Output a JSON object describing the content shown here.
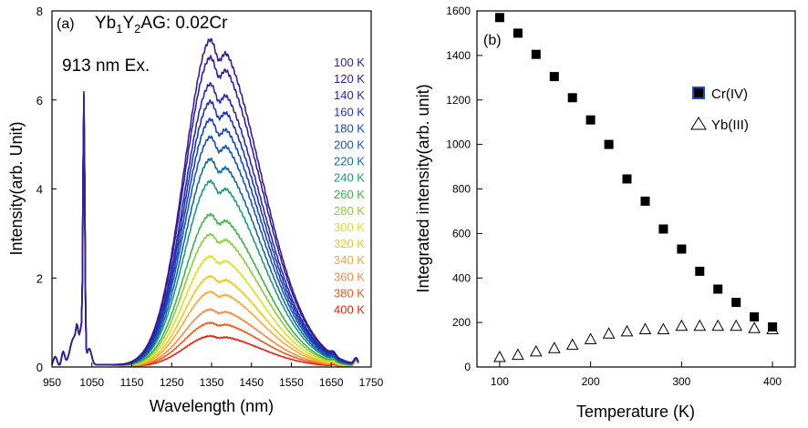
{
  "chart_data": [
    {
      "type": "line",
      "panel_label": "(a)",
      "sample_label": {
        "pre": "Yb",
        "s1": "1",
        "mid": "Y",
        "s2": "2",
        "post": "AG: 0.02Cr"
      },
      "excitation_label": "913 nm Ex.",
      "xlabel": "Wavelength (nm)",
      "ylabel": "Intensity(arb. Unit)",
      "xlim": [
        950,
        1750
      ],
      "ylim": [
        0,
        8
      ],
      "xticks": [
        950,
        1050,
        1150,
        1250,
        1350,
        1450,
        1550,
        1650,
        1750
      ],
      "yticks": [
        0,
        2,
        4,
        6,
        8
      ],
      "legend_placement": "right",
      "series": [
        {
          "name": "100 K",
          "color": "#3b1e8f",
          "peak": 7.4,
          "yb_peak": 5.95
        },
        {
          "name": "120 K",
          "color": "#33209a",
          "peak": 7.0,
          "yb_peak": 5.9
        },
        {
          "name": "140 K",
          "color": "#2b2aa6",
          "peak": 6.4,
          "yb_peak": 5.85
        },
        {
          "name": "160 K",
          "color": "#1f36b0",
          "peak": 6.0,
          "yb_peak": 5.8
        },
        {
          "name": "180 K",
          "color": "#1b46b8",
          "peak": 5.6,
          "yb_peak": 5.75
        },
        {
          "name": "200 K",
          "color": "#1a56b8",
          "peak": 5.2,
          "yb_peak": 5.7
        },
        {
          "name": "220 K",
          "color": "#176a9e",
          "peak": 4.7,
          "yb_peak": 5.65
        },
        {
          "name": "240 K",
          "color": "#1f9a82",
          "peak": 4.2,
          "yb_peak": 5.6
        },
        {
          "name": "260 K",
          "color": "#3db34a",
          "peak": 3.45,
          "yb_peak": 5.55
        },
        {
          "name": "280 K",
          "color": "#8ccc3a",
          "peak": 3.0,
          "yb_peak": 5.5
        },
        {
          "name": "300 K",
          "color": "#d8e020",
          "peak": 2.5,
          "yb_peak": 5.45
        },
        {
          "name": "320 K",
          "color": "#f3c41c",
          "peak": 2.05,
          "yb_peak": 5.4
        },
        {
          "name": "340 K",
          "color": "#f6a83a",
          "peak": 1.7,
          "yb_peak": 5.3
        },
        {
          "name": "360 K",
          "color": "#f18a48",
          "peak": 1.3,
          "yb_peak": 5.2
        },
        {
          "name": "380 K",
          "color": "#ea5a16",
          "peak": 1.0,
          "yb_peak": 5.1
        },
        {
          "name": "400 K",
          "color": "#e81e10",
          "peak": 0.7,
          "yb_peak": 5.0
        }
      ]
    },
    {
      "type": "scatter",
      "panel_label": "(b)",
      "xlabel": "Temperature (K)",
      "ylabel": "Integrated intensity(arb. unit)",
      "xlim": [
        75,
        425
      ],
      "ylim": [
        0,
        1600
      ],
      "xticks": [
        100,
        200,
        300,
        400
      ],
      "yticks": [
        0,
        200,
        400,
        600,
        800,
        1000,
        1200,
        1400,
        1600
      ],
      "legend_placement": "right",
      "series": [
        {
          "name": "Cr(IV)",
          "marker": "filled-square",
          "legend_edge_color": "#2a46c8",
          "x": [
            100,
            120,
            140,
            160,
            180,
            200,
            220,
            240,
            260,
            280,
            300,
            320,
            340,
            360,
            380,
            400
          ],
          "y": [
            1570,
            1500,
            1405,
            1305,
            1210,
            1110,
            1000,
            845,
            745,
            620,
            530,
            430,
            350,
            290,
            225,
            180
          ]
        },
        {
          "name": "Yb(III)",
          "marker": "open-triangle",
          "x": [
            100,
            120,
            140,
            160,
            180,
            200,
            220,
            240,
            260,
            280,
            300,
            320,
            340,
            360,
            380,
            400
          ],
          "y": [
            45,
            55,
            70,
            85,
            100,
            125,
            150,
            160,
            170,
            170,
            185,
            185,
            185,
            185,
            175,
            170
          ]
        }
      ]
    }
  ]
}
